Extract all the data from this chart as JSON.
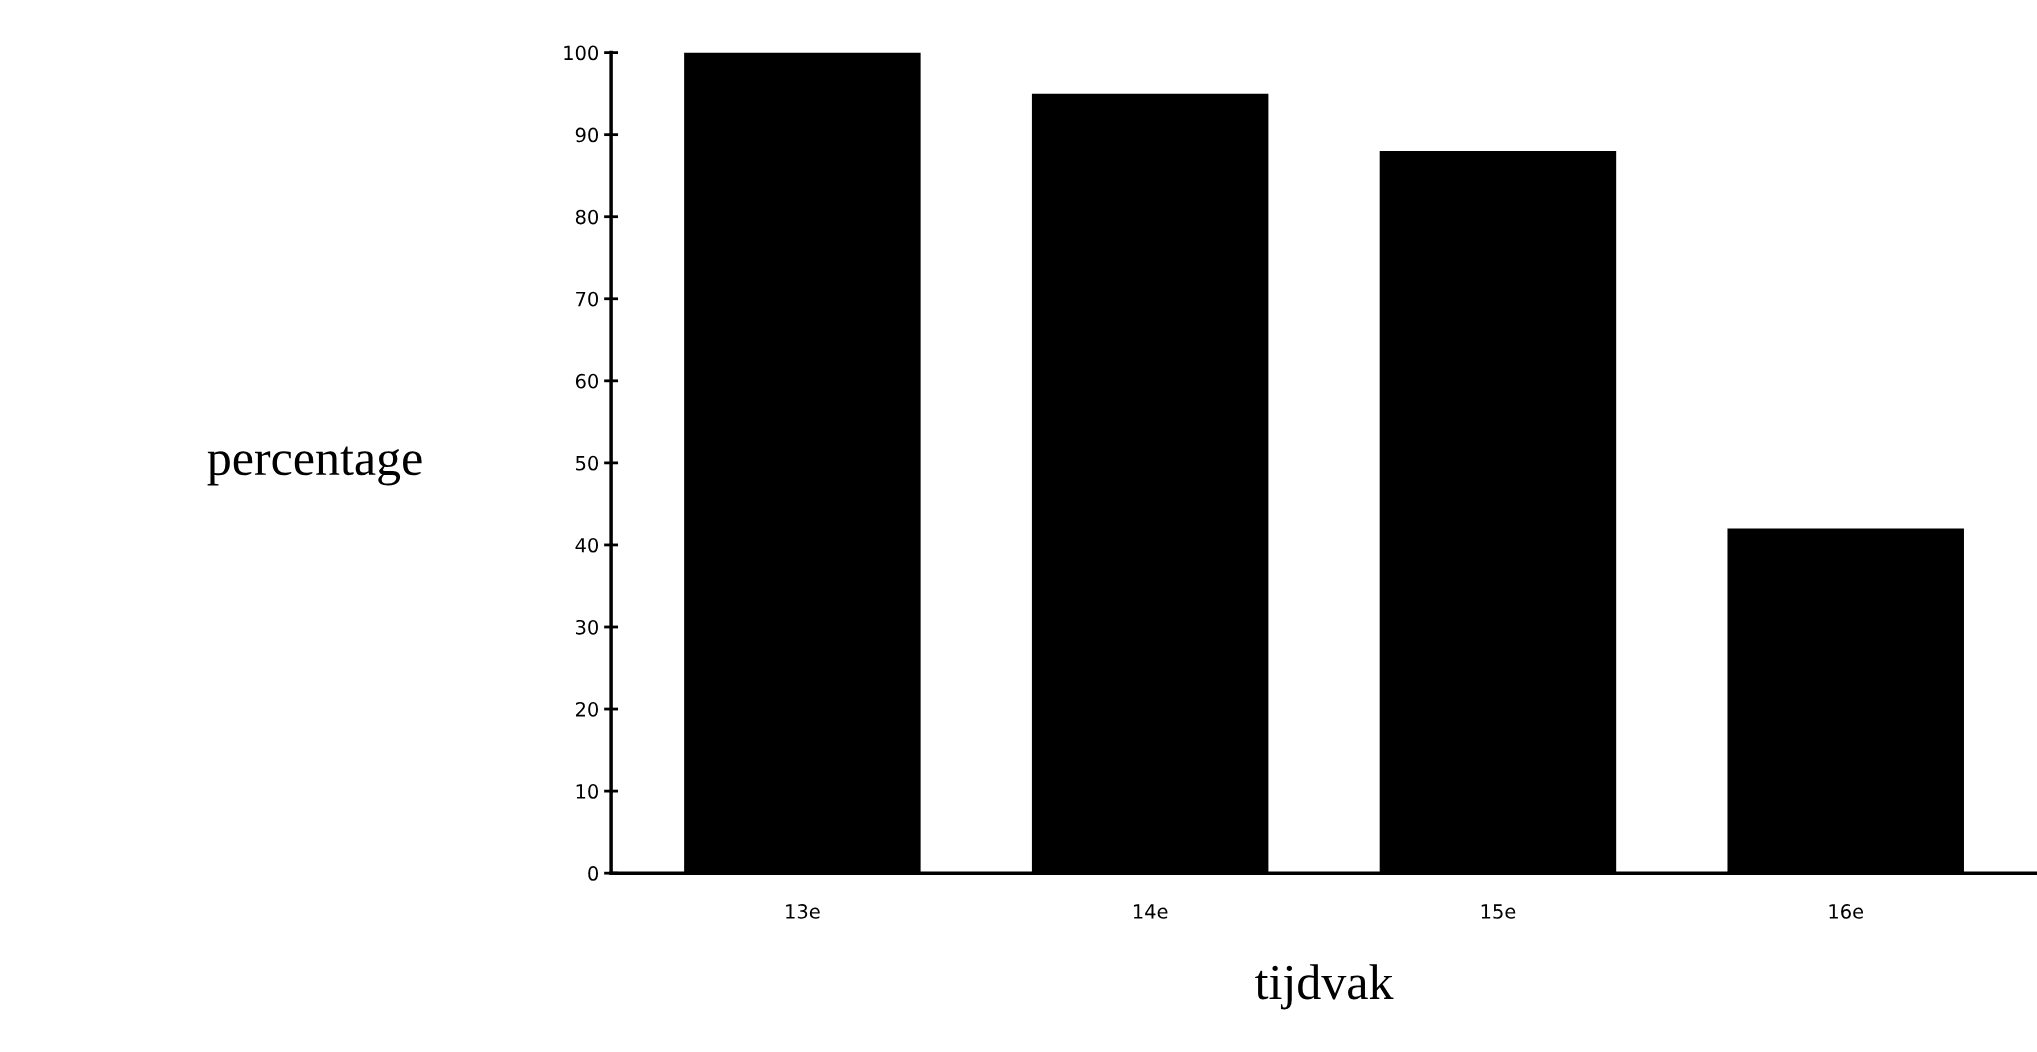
{
  "chart_data": {
    "type": "bar",
    "xlabel": "tijdvak",
    "ylabel": "percentage",
    "categories": [
      "13e",
      "14e",
      "15e",
      "16e"
    ],
    "values": [
      100,
      95,
      88,
      42
    ],
    "color": "#000000",
    "ylim": [
      0,
      100
    ],
    "yticks": [
      0,
      10,
      20,
      30,
      40,
      50,
      60,
      70,
      80,
      90,
      100
    ],
    "grid": false,
    "legend": false
  }
}
